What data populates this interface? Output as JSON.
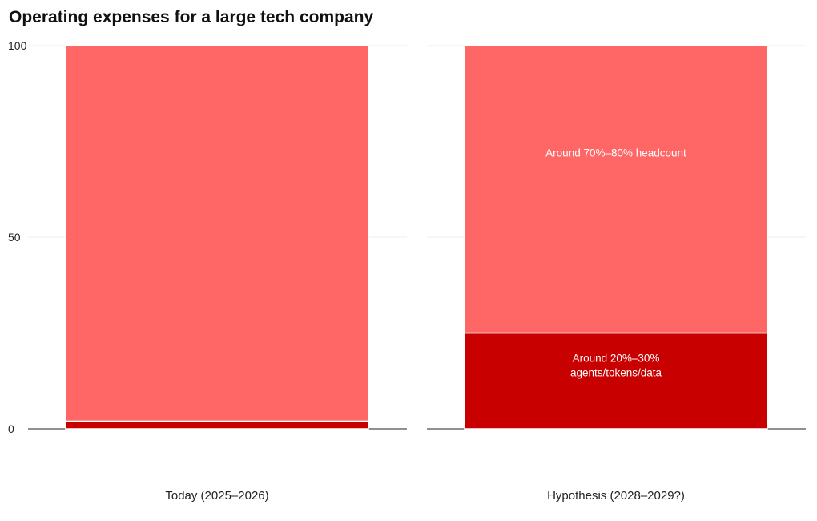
{
  "chart_data": {
    "type": "bar",
    "stacked": true,
    "title": "Operating expenses for a large tech company",
    "categories": [
      "Today (2025–2026)",
      "Hypothesis (2028–2029?)"
    ],
    "series": [
      {
        "values": [
          2,
          25
        ],
        "color": "#c80000",
        "labels": [
          "",
          "Around 20%–30%\nagents/tokens/data"
        ]
      },
      {
        "values": [
          98,
          75
        ],
        "color": "#ff6666",
        "labels": [
          "",
          "Around 70%–80% headcount"
        ]
      }
    ],
    "ylim": [
      0,
      100
    ],
    "yticks": [
      0,
      50,
      100
    ],
    "grid": true,
    "xlabel": "",
    "ylabel": ""
  }
}
